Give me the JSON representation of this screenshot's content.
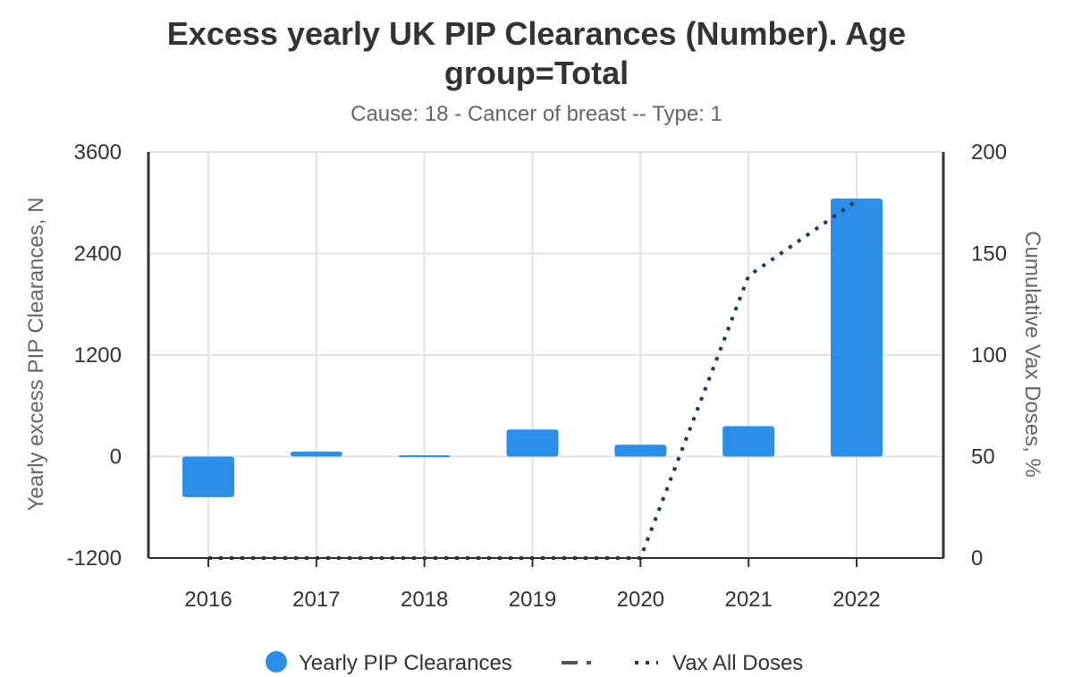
{
  "chart_data": {
    "type": "bar",
    "title_line1": "Excess yearly UK PIP Clearances (Number). Age",
    "title_line2": "group=Total",
    "subtitle": "Cause: 18 - Cancer of breast -- Type: 1",
    "categories": [
      "2016",
      "2017",
      "2018",
      "2019",
      "2020",
      "2021",
      "2022"
    ],
    "y_left": {
      "label": "Yearly excess PIP Clearances, N",
      "min": -1200,
      "max": 3600,
      "ticks": [
        "3600",
        "2400",
        "1200",
        "0",
        "-1200"
      ]
    },
    "y_right": {
      "label": "Cumulative Vax Doses, %",
      "min": 0,
      "max": 200,
      "ticks": [
        "200",
        "150",
        "100",
        "50",
        "0"
      ]
    },
    "series": [
      {
        "name": "Yearly PIP Clearances",
        "kind": "bar",
        "axis": "left",
        "color": "#2b8fe8",
        "values": [
          -480,
          60,
          15,
          320,
          140,
          360,
          3050
        ]
      },
      {
        "name": "Vax All Doses",
        "kind": "line-dotted",
        "axis": "right",
        "color": "#1b3a5c",
        "values": [
          0,
          0,
          0,
          0,
          0,
          139,
          176
        ]
      }
    ],
    "legend": {
      "position": "bottom",
      "items": [
        {
          "label": "Yearly PIP Clearances",
          "marker": "circle",
          "color": "#2b8fe8"
        },
        {
          "label": "",
          "marker": "dash-dot",
          "color": "#555555"
        },
        {
          "label": "Vax All Doses",
          "marker": "dots",
          "color": "#1b3a5c"
        }
      ]
    },
    "grid": true
  }
}
